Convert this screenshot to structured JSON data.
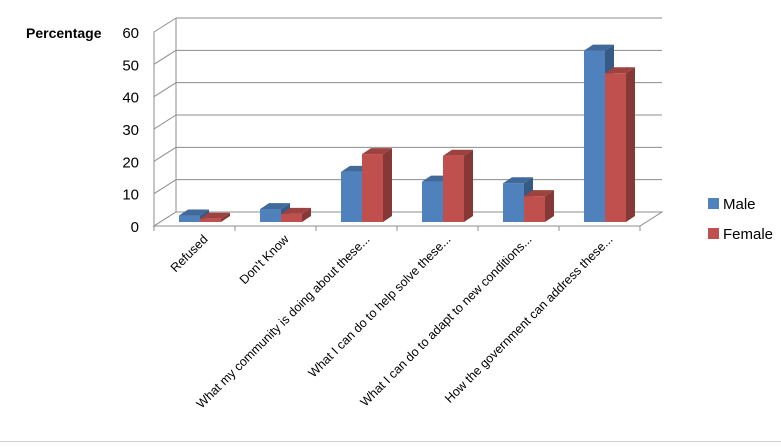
{
  "chart_data": {
    "type": "bar",
    "ylabel": "Percentage",
    "ylim": [
      0,
      60
    ],
    "yticks": [
      0,
      10,
      20,
      30,
      40,
      50,
      60
    ],
    "categories": [
      "Refused",
      "Don't Know",
      "What my community is doing about these...",
      "What I can do to help solve these...",
      "What I can do to adapt to new conditions...",
      "How the government can address these..."
    ],
    "series": [
      {
        "name": "Male",
        "values": [
          2,
          4,
          15.5,
          12.5,
          12,
          53
        ],
        "color": "#4f81bd"
      },
      {
        "name": "Female",
        "values": [
          1,
          2.5,
          21,
          20.5,
          8,
          46
        ],
        "color": "#c0504d"
      }
    ],
    "legend_position": "right",
    "grid": true
  }
}
